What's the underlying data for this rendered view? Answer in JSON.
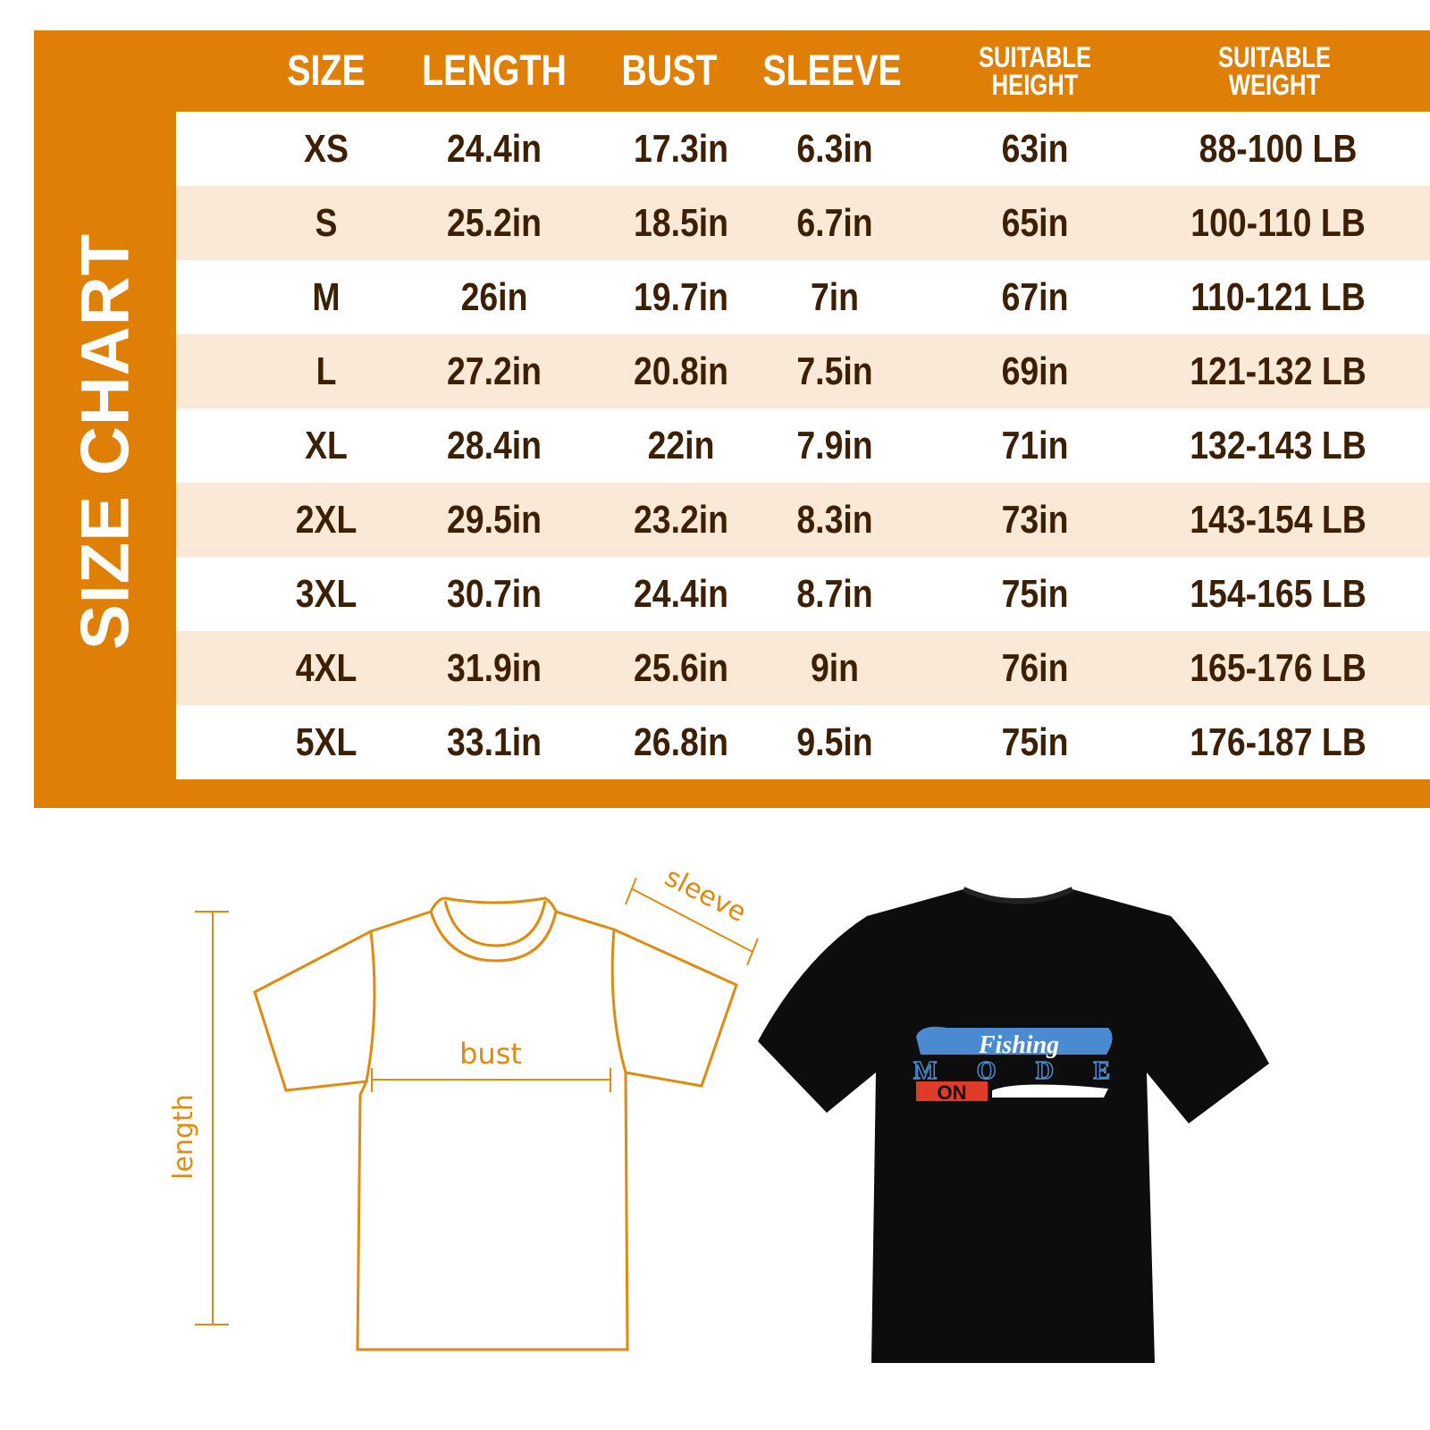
{
  "title": "SIZE CHART",
  "headers": [
    "SIZE",
    "LENGTH",
    "BUST",
    "SLEEVE",
    "SUITABLE HEIGHT",
    "SUITABLE WEIGHT"
  ],
  "header_lines": {
    "height": [
      "SUITABLE",
      "HEIGHT"
    ],
    "weight": [
      "SUITABLE",
      "WEIGHT"
    ]
  },
  "rows": [
    [
      "XS",
      "24.4in",
      "17.3in",
      "6.3in",
      "63in",
      "88-100 LB"
    ],
    [
      "S",
      "25.2in",
      "18.5in",
      "6.7in",
      "65in",
      "100-110 LB"
    ],
    [
      "M",
      "26in",
      "19.7in",
      "7in",
      "67in",
      "110-121 LB"
    ],
    [
      "L",
      "27.2in",
      "20.8in",
      "7.5in",
      "69in",
      "121-132 LB"
    ],
    [
      "XL",
      "28.4in",
      "22in",
      "7.9in",
      "71in",
      "132-143 LB"
    ],
    [
      "2XL",
      "29.5in",
      "23.2in",
      "8.3in",
      "73in",
      "143-154 LB"
    ],
    [
      "3XL",
      "30.7in",
      "24.4in",
      "8.7in",
      "75in",
      "154-165 LB"
    ],
    [
      "4XL",
      "31.9in",
      "25.6in",
      "9in",
      "76in",
      "165-176 LB"
    ],
    [
      "5XL",
      "33.1in",
      "26.8in",
      "9.5in",
      "75in",
      "176-187 LB"
    ]
  ],
  "diagram": {
    "sleeve": "sleeve",
    "bust": "bust",
    "length": "length"
  },
  "shirt_print": {
    "line1": "Fishing",
    "line2": "MODE",
    "line3": "ON"
  },
  "colors": {
    "accent": "#e07f06",
    "stripe": "#fae9d6",
    "text": "#3d1f04",
    "print_blue": "#4a8ad0",
    "print_red": "#e03a2a"
  }
}
